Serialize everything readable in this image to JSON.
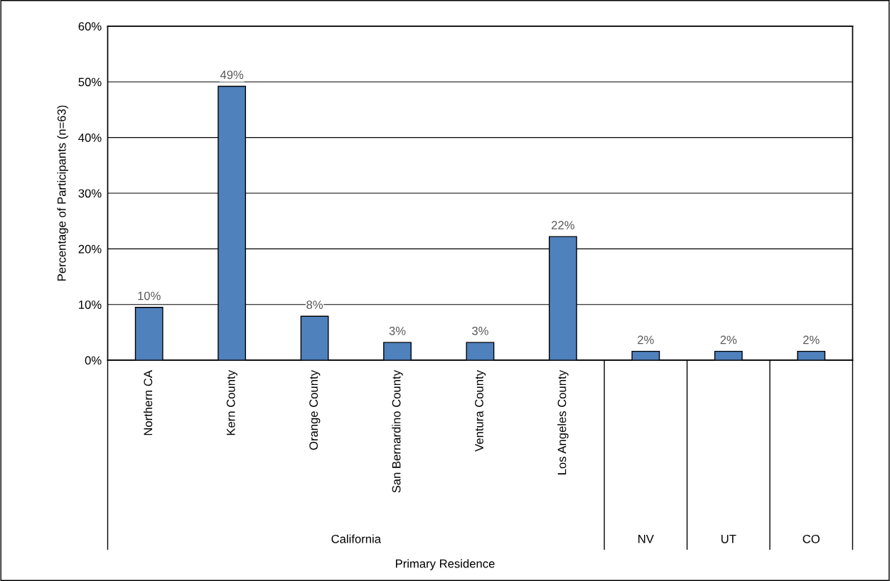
{
  "chart_data": {
    "type": "bar",
    "ylabel": "Percentage of Participants (n=63)",
    "categories": [
      "Northern CA",
      "Kern County",
      "Orange County",
      "San Bernardino County",
      "Ventura County",
      "Los Angeles County",
      null,
      null,
      null
    ],
    "values": [
      9.5,
      49.2,
      7.9,
      3.2,
      3.2,
      22.2,
      1.6,
      1.6,
      1.6
    ],
    "value_labels": [
      "10%",
      "49%",
      "8%",
      "3%",
      "3%",
      "22%",
      "2%",
      "2%",
      "2%"
    ],
    "color": "#4f81bd",
    "ylim": [
      0,
      60
    ],
    "yticks": [
      {
        "value": 0,
        "label": "0%"
      },
      {
        "value": 10,
        "label": "10%"
      },
      {
        "value": 20,
        "label": "20%"
      },
      {
        "value": 30,
        "label": "30%"
      },
      {
        "value": 40,
        "label": "40%"
      },
      {
        "value": 50,
        "label": "50%"
      },
      {
        "value": 60,
        "label": "60%"
      }
    ],
    "grid": "y",
    "annotations": [
      "California",
      "NV",
      "UT",
      "CO",
      "Primary Residence"
    ]
  }
}
